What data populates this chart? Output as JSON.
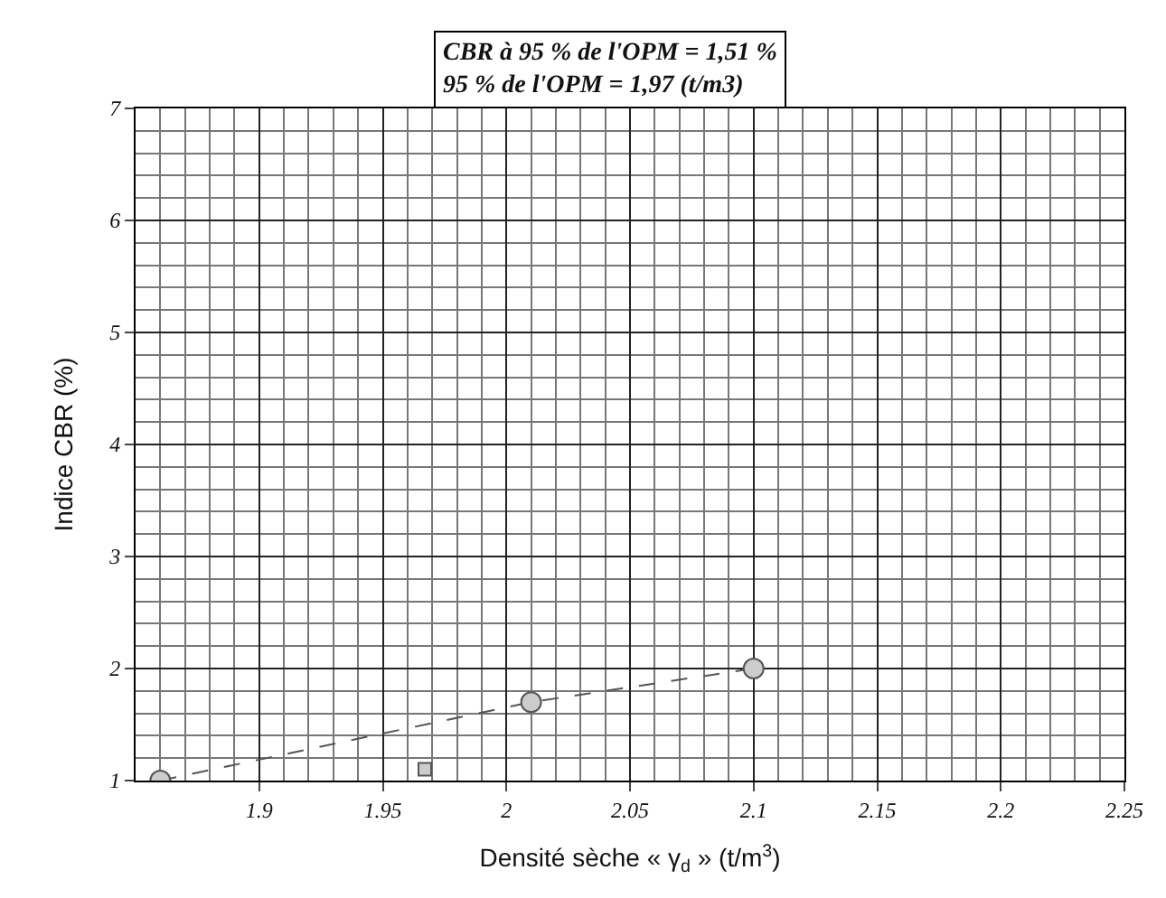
{
  "chart_data": {
    "type": "line",
    "xlabel": "Densité sèche « γ$_{d}$ » (t/m$^{3}$)",
    "ylabel": "Indice CBR (%)",
    "annotations": [
      "CBR à 95 % de l'OPM = 1,51 %",
      "95 % de l'OPM = 1,97 (t/m3)"
    ],
    "series": [
      {
        "color": "#555555",
        "x": [
          1.86,
          2.01,
          2.1
        ],
        "values": [
          1.0,
          1.7,
          2.0
        ],
        "marker": "circle"
      },
      {
        "type": "scatter",
        "color": "#555555",
        "x": [
          1.967
        ],
        "values": [
          1.1
        ],
        "marker": "square"
      }
    ],
    "xlim": [
      1.85,
      2.25
    ],
    "xticks": [
      1.9,
      1.95,
      2,
      2.05,
      2.1,
      2.15,
      2.2,
      2.25
    ],
    "ylim": [
      1,
      7
    ],
    "yticks": [
      1,
      2,
      3,
      4,
      5,
      6,
      7
    ],
    "grid": true,
    "line_style": "dashed"
  }
}
